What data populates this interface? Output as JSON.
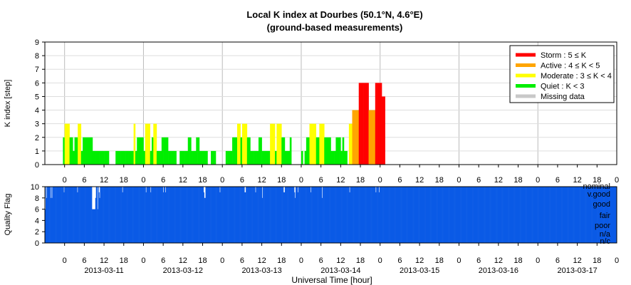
{
  "chart_data": {
    "type": "bar",
    "title": "Local K index at Dourbes (50.1°N, 4.6°E)",
    "subtitle": "(ground-based measurements)",
    "xlabel": "Universal Time [hour]",
    "colors": {
      "storm": "#ff0000",
      "active": "#ffa500",
      "moderate": "#ffff00",
      "quiet": "#00ee00",
      "missing": "#c8c8c8",
      "quality": "#0a5ae6",
      "grid": "#bbbbbb"
    },
    "legend": {
      "placement": "top-right",
      "entries": [
        {
          "key": "storm",
          "label": "Storm : 5 ≤ K"
        },
        {
          "key": "active",
          "label": "Active : 4 ≤ K < 5"
        },
        {
          "key": "moderate",
          "label": "Moderate : 3 ≤ K < 4"
        },
        {
          "key": "quiet",
          "label": "Quiet : K < 3"
        },
        {
          "key": "missing",
          "label": "Missing data"
        }
      ]
    },
    "k_panel": {
      "ylabel": "K index [step]",
      "ylim": [
        0,
        9
      ],
      "yticks": [
        "0",
        "1",
        "2",
        "3",
        "4",
        "5",
        "6",
        "7",
        "8",
        "9"
      ],
      "grid": true,
      "step_hours": 0.5,
      "x_range_hours": [
        -6,
        168
      ],
      "start_hour": -0.5,
      "k_values": [
        2,
        3,
        3,
        3,
        2,
        2,
        1,
        2,
        2,
        3,
        3,
        1,
        2,
        2,
        2,
        2,
        2,
        2,
        1,
        1,
        1,
        1,
        1,
        1,
        1,
        1,
        1,
        1,
        0,
        0,
        0,
        0,
        1,
        1,
        1,
        1,
        1,
        1,
        1,
        1,
        1,
        1,
        1,
        3,
        1,
        2,
        2,
        2,
        2,
        1,
        3,
        3,
        3,
        1,
        2,
        3,
        3,
        1,
        1,
        1,
        2,
        2,
        2,
        2,
        1,
        1,
        1,
        1,
        1,
        0,
        0,
        1,
        1,
        1,
        1,
        1,
        2,
        2,
        1,
        1,
        1,
        2,
        2,
        1,
        1,
        1,
        1,
        1,
        0,
        0,
        1,
        1,
        1,
        0,
        0,
        0,
        0,
        0,
        0,
        1,
        1,
        1,
        1,
        2,
        2,
        2,
        3,
        3,
        2,
        3,
        3,
        3,
        2,
        2,
        1,
        1,
        1,
        1,
        1,
        2,
        2,
        1,
        1,
        1,
        1,
        1,
        3,
        3,
        3,
        1,
        3,
        3,
        3,
        2,
        2,
        1,
        1,
        1,
        2,
        0,
        0,
        0,
        0,
        0,
        0,
        1,
        0,
        1,
        2,
        2,
        3,
        3,
        3,
        3,
        2,
        2,
        3,
        3,
        3,
        2,
        2,
        2,
        2,
        1,
        1,
        1,
        2,
        2,
        2,
        1,
        2,
        1,
        1,
        0,
        3,
        3,
        4,
        4,
        4,
        4,
        6,
        6,
        6,
        6,
        6,
        6,
        4,
        4,
        4,
        4,
        6,
        6,
        6,
        6,
        5,
        5
      ]
    },
    "quality_panel": {
      "ylabel": "Quality Flag",
      "ylim": [
        0,
        10
      ],
      "yticks": [
        "0",
        "2",
        "4",
        "6",
        "8",
        "10"
      ],
      "grid": true,
      "category_labels": [
        "nominal",
        "v.good",
        "good",
        "fair",
        "poor",
        "n/a",
        "n/c"
      ],
      "values": [
        6,
        10,
        8,
        10,
        10,
        10,
        10,
        10,
        8,
        10,
        8,
        10,
        10,
        10,
        10,
        10,
        10,
        10,
        10,
        10,
        10,
        10,
        10,
        10,
        10,
        10,
        10,
        10,
        9,
        10,
        10,
        10,
        10,
        10,
        10,
        10,
        10,
        10,
        10,
        10,
        10,
        10,
        10,
        10,
        10,
        10,
        10,
        10,
        9,
        10,
        10,
        10,
        10,
        10,
        10,
        10,
        10,
        10,
        10,
        10,
        10,
        10,
        10,
        10,
        10,
        10,
        10,
        10,
        10,
        10,
        6,
        6,
        6,
        6,
        6,
        8,
        10,
        10,
        6,
        10,
        9,
        8,
        10,
        10,
        10,
        10,
        10,
        10,
        10,
        10,
        10,
        10,
        10,
        10,
        10,
        10,
        10,
        10,
        10,
        10,
        10,
        10,
        10,
        10,
        10,
        10,
        10,
        10,
        10,
        10,
        10,
        10,
        10,
        10,
        10,
        9,
        10,
        10,
        10,
        10,
        10,
        10,
        10,
        10,
        10,
        10,
        10,
        10,
        10,
        10,
        10,
        10,
        10,
        10,
        10,
        10,
        10,
        10,
        10,
        10,
        10,
        10,
        10,
        10,
        10,
        10,
        10,
        10,
        10,
        10,
        9,
        10,
        10,
        10,
        10,
        10,
        10,
        9,
        10,
        10,
        10,
        10,
        10,
        10,
        10,
        10,
        10,
        10,
        10,
        10,
        10,
        10,
        10,
        10,
        10,
        10,
        9,
        10,
        10,
        9,
        10,
        10,
        10,
        10,
        10,
        10,
        10,
        10,
        10,
        10,
        10,
        10,
        10,
        10,
        10,
        10,
        10,
        10,
        10,
        10,
        10,
        10,
        10,
        10,
        10,
        10,
        10,
        10,
        10,
        10,
        10,
        10,
        10,
        10,
        10,
        10,
        10,
        10,
        10,
        10,
        10,
        10,
        10,
        10,
        10,
        10,
        10,
        10,
        10,
        10,
        10,
        10,
        10,
        10,
        10,
        10,
        9,
        8,
        8,
        10,
        10,
        10,
        10,
        10,
        10,
        10,
        10,
        10,
        10,
        10,
        10,
        10,
        10,
        10,
        10,
        10,
        10,
        10,
        10,
        10,
        9,
        10,
        10,
        10,
        10,
        10,
        10,
        10,
        10,
        10,
        10,
        10,
        10,
        10,
        10,
        10,
        10,
        10,
        10,
        10,
        10,
        10,
        10,
        10,
        10,
        10,
        10,
        10,
        10,
        10,
        10,
        10,
        10,
        10,
        10,
        10,
        10,
        9,
        9,
        10,
        10,
        10,
        10,
        10,
        10,
        10,
        10,
        10,
        10,
        10,
        10,
        10,
        10,
        9,
        10,
        10,
        10,
        10,
        10,
        10,
        10,
        10,
        10,
        8,
        10,
        10,
        10,
        10,
        10,
        10,
        10,
        10,
        10,
        10,
        10,
        10,
        10,
        10,
        10,
        10,
        10,
        10,
        10,
        10,
        10,
        10,
        10,
        10,
        10,
        10,
        10,
        10,
        10,
        10,
        10,
        9,
        9,
        10,
        10,
        10,
        10,
        10,
        10,
        10,
        10,
        10,
        10,
        10,
        10,
        10,
        10,
        9,
        8,
        10,
        10,
        10,
        9,
        10,
        10,
        10,
        10,
        10,
        10,
        10,
        10,
        10,
        10,
        10,
        10,
        10,
        10,
        10,
        10,
        10,
        10,
        9,
        10,
        10,
        10,
        10,
        10,
        10,
        10,
        10,
        10,
        10,
        10,
        10,
        10,
        10,
        10,
        10,
        8,
        10,
        10,
        10,
        10,
        10,
        10,
        10,
        10,
        10,
        10,
        10,
        10,
        10,
        10,
        10,
        10,
        10,
        10,
        10,
        10,
        10,
        10,
        10,
        10,
        10,
        10,
        10,
        10,
        10,
        10,
        10,
        10,
        10,
        10,
        10,
        10,
        10,
        10,
        10,
        10,
        9,
        10,
        10,
        10,
        10,
        10,
        10,
        10,
        10,
        10,
        10,
        10,
        10,
        10,
        10,
        10,
        10,
        10,
        10,
        10,
        10,
        10,
        10,
        10,
        10,
        10,
        10,
        10,
        10,
        10,
        10,
        10,
        10,
        10,
        10,
        10,
        10,
        10,
        10,
        9,
        10,
        10,
        10,
        10,
        9,
        10,
        10,
        10,
        10,
        10,
        10,
        10,
        10,
        10,
        10,
        10,
        10,
        10,
        10,
        10,
        10,
        10,
        10,
        10,
        10,
        10,
        10,
        10,
        10,
        10,
        10,
        10,
        10,
        10,
        10,
        10,
        10,
        10,
        10,
        10,
        10,
        10,
        10,
        10,
        10,
        10,
        10,
        10,
        10,
        10,
        10,
        10,
        10,
        10,
        10,
        10,
        10,
        10,
        10,
        10,
        10,
        10,
        10,
        10,
        10,
        10,
        10,
        10,
        10,
        10,
        10,
        10,
        10,
        10,
        10,
        10,
        10,
        10,
        10,
        10,
        10,
        10,
        10,
        10,
        10,
        10,
        10,
        10,
        10,
        10,
        10,
        10,
        10,
        10,
        10,
        10,
        10,
        10,
        10,
        10,
        10,
        10,
        10,
        10,
        10,
        10,
        10,
        10,
        10,
        10,
        10,
        10,
        10,
        10,
        10,
        10,
        10,
        10,
        10,
        10,
        10,
        10,
        10,
        10,
        10,
        10,
        10,
        10,
        10,
        10,
        10,
        10,
        10,
        10,
        10,
        10,
        10,
        10,
        10,
        10,
        10,
        10,
        10,
        10,
        10,
        10,
        10,
        10,
        10,
        10,
        10,
        10,
        10,
        10,
        10,
        10,
        10,
        10,
        10,
        10,
        10,
        10,
        10,
        10,
        10,
        10,
        10,
        10,
        10,
        10,
        10,
        10,
        10,
        10,
        10,
        10,
        10,
        10,
        10,
        10,
        10,
        10,
        10,
        10,
        10,
        10,
        10,
        10,
        10,
        10,
        10,
        10,
        10,
        10,
        10,
        10,
        10,
        10,
        10,
        10,
        10,
        10,
        10,
        10,
        10,
        10,
        10,
        10,
        10,
        10,
        10,
        10,
        10,
        10,
        10,
        10,
        10,
        10,
        10,
        10,
        10,
        10,
        10,
        10,
        10,
        10,
        10,
        10,
        10,
        10,
        10,
        10,
        10,
        10,
        10,
        10,
        10,
        10,
        10,
        10,
        10,
        10,
        10,
        10,
        10,
        10,
        10,
        10,
        10,
        10,
        10,
        10,
        10,
        10,
        10,
        10,
        10,
        10,
        10,
        10,
        10,
        10,
        10,
        10,
        10,
        10,
        10,
        10,
        10,
        10,
        10,
        10,
        10,
        10,
        10,
        10,
        10,
        10,
        10,
        10,
        10,
        10,
        10,
        10,
        10,
        10,
        10,
        10,
        10,
        10,
        10,
        10,
        10,
        10,
        10,
        10,
        10,
        10,
        10,
        10,
        10,
        10,
        10,
        10,
        10,
        10,
        10,
        10,
        10,
        10,
        10,
        10,
        10,
        10,
        10,
        10,
        10,
        10,
        10,
        10,
        10,
        10,
        10,
        10,
        10,
        10,
        10,
        10,
        10,
        10,
        10,
        10,
        10,
        10,
        10,
        10,
        10,
        10,
        10,
        10,
        10,
        10,
        10,
        10,
        10,
        10,
        10,
        10,
        10,
        10,
        10,
        10,
        10,
        10,
        10,
        10,
        10,
        10
      ]
    },
    "hour_ticks": [
      "0",
      "6",
      "12",
      "18"
    ],
    "days": [
      "2013-03-11",
      "2013-03-12",
      "2013-03-13",
      "2013-03-14",
      "2013-03-15",
      "2013-03-16",
      "2013-03-17"
    ],
    "final_tick": "0"
  }
}
